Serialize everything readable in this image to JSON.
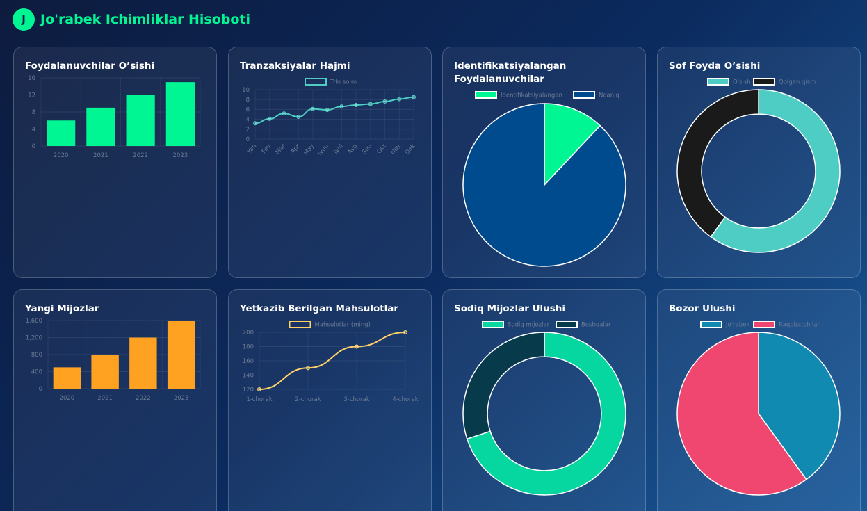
{
  "header": {
    "logo_letter": "J",
    "title": "Jo'rabek Ichimliklar Hisoboti"
  },
  "charts": {
    "users": {
      "title": "Foydalanuvchilar O’sishi"
    },
    "transactions": {
      "title": "Tranzaksiyalar Hajmi"
    },
    "identified": {
      "title": "Identifikatsiyalangan Foydalanuvchilar"
    },
    "profit": {
      "title": "Sof Foyda O’sishi"
    },
    "newclients": {
      "title": "Yangi Mijozlar"
    },
    "delivered": {
      "title": "Yetkazib Berilgan Mahsulotlar"
    },
    "loyal": {
      "title": "Sodiq Mijozlar Ulushi"
    },
    "market": {
      "title": "Bozor Ulushi"
    }
  },
  "chart_data": [
    {
      "id": "users",
      "type": "bar",
      "categories": [
        "2020",
        "2021",
        "2022",
        "2023"
      ],
      "values": [
        6,
        9,
        12,
        15
      ],
      "ylim": [
        0,
        16
      ],
      "yticks": [
        "0",
        "4",
        "8",
        "12",
        "16"
      ],
      "color": "#00f593"
    },
    {
      "id": "transactions",
      "type": "line",
      "categories": [
        "Yan",
        "Fev",
        "Mar",
        "Apr",
        "May",
        "Iyun",
        "Iyul",
        "Avg",
        "Sen",
        "Okt",
        "Noy",
        "Dek"
      ],
      "series": [
        {
          "name": "Trln so'm",
          "values": [
            3.2,
            4.1,
            5.2,
            4.5,
            6.1,
            5.9,
            6.6,
            6.9,
            7.1,
            7.6,
            8.1,
            8.5
          ]
        }
      ],
      "ylim": [
        0,
        10
      ],
      "yticks": [
        "0",
        "2",
        "4",
        "6",
        "8",
        "10"
      ],
      "color": "#4ecdc4"
    },
    {
      "id": "identified",
      "type": "pie",
      "labels": [
        "Identifikatsiyalangan",
        "Noaniq"
      ],
      "values": [
        12,
        88
      ],
      "colors": [
        "#00f593",
        "#004b8d"
      ]
    },
    {
      "id": "profit",
      "type": "doughnut",
      "labels": [
        "O'sish",
        "Qolgan qism"
      ],
      "values": [
        60,
        40
      ],
      "colors": [
        "#4ecdc4",
        "#1a1a1a"
      ]
    },
    {
      "id": "newclients",
      "type": "bar",
      "categories": [
        "2020",
        "2021",
        "2022",
        "2023"
      ],
      "values": [
        500,
        800,
        1200,
        1600
      ],
      "ylim": [
        0,
        1600
      ],
      "yticks": [
        "0",
        "400",
        "800",
        "1,200",
        "1,600"
      ],
      "color": "#ffa121"
    },
    {
      "id": "delivered",
      "type": "line",
      "categories": [
        "1-chorak",
        "2-chorak",
        "3-chorak",
        "4-chorak"
      ],
      "series": [
        {
          "name": "Mahsulotlar (ming)",
          "values": [
            120,
            150,
            180,
            200
          ]
        }
      ],
      "ylim": [
        120,
        200
      ],
      "yticks": [
        "120",
        "140",
        "160",
        "180",
        "200"
      ],
      "color": "#ffd166"
    },
    {
      "id": "loyal",
      "type": "doughnut",
      "labels": [
        "Sodiq mijozlar",
        "Boshqalar"
      ],
      "values": [
        70,
        30
      ],
      "colors": [
        "#06d6a0",
        "#073b4c"
      ]
    },
    {
      "id": "market",
      "type": "pie",
      "labels": [
        "Jo'rabek",
        "Raqobatchilar"
      ],
      "values": [
        40,
        60
      ],
      "colors": [
        "#118ab2",
        "#ef476f"
      ]
    }
  ]
}
